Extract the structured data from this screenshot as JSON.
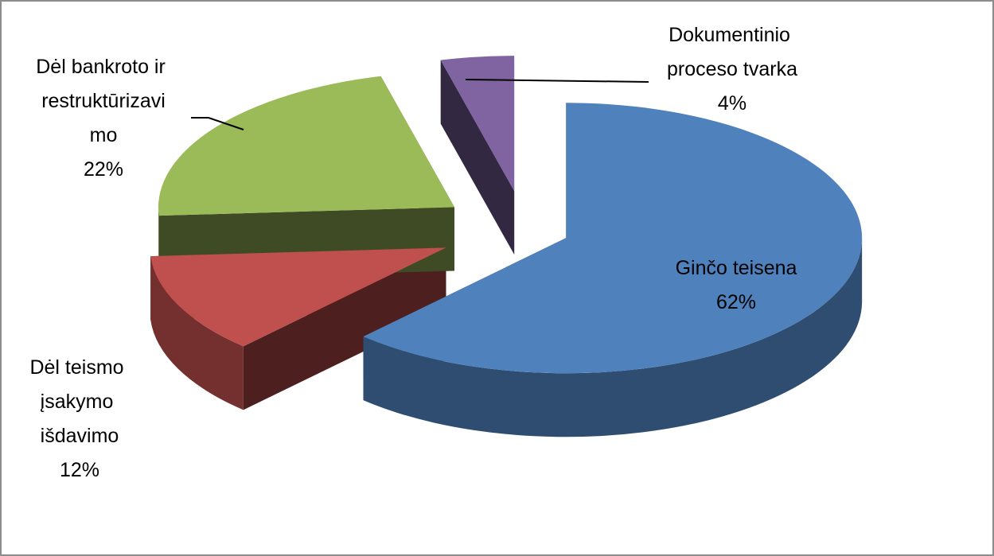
{
  "chart_data": {
    "type": "pie3d",
    "categories": [
      "Ginčo teisena",
      "Dėl teismo įsakymo išdavimo",
      "Dėl bankroto ir restruktūrizavimo",
      "Dokumentinio proceso tvarka"
    ],
    "values": [
      62,
      12,
      22,
      4
    ],
    "value_labels": [
      "62%",
      "12%",
      "22%",
      "4%"
    ],
    "colors": [
      "#4f81bd",
      "#c0504d",
      "#9bbb59",
      "#8064a2"
    ]
  }
}
